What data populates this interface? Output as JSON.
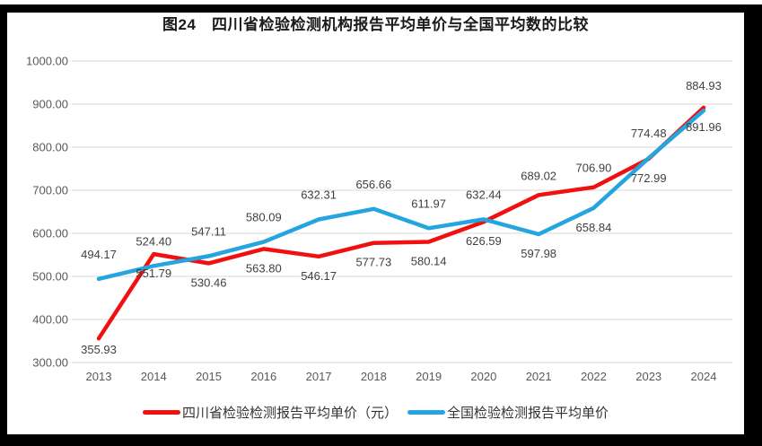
{
  "frame": {
    "color": "#000000"
  },
  "chart_data": {
    "type": "line",
    "title": "图24　四川省检验检测机构报告平均单价与全国平均数的比较",
    "categories": [
      "2013",
      "2014",
      "2015",
      "2016",
      "2017",
      "2018",
      "2019",
      "2020",
      "2021",
      "2022",
      "2023",
      "2024"
    ],
    "series": [
      {
        "key": "sichuan",
        "name": "四川省检验检测报告平均单价（元）",
        "color": "#F01010",
        "values": [
          355.93,
          551.79,
          530.46,
          563.8,
          546.17,
          577.73,
          580.14,
          626.59,
          689.02,
          706.9,
          772.99,
          891.96
        ],
        "label_positions": [
          "below",
          "below",
          "below",
          "below",
          "below",
          "below",
          "below",
          "below",
          "above",
          "above",
          "below",
          "below"
        ],
        "label_dy": [
          -9,
          0,
          0,
          0,
          0,
          0,
          0,
          0,
          6,
          6,
          0,
          0
        ]
      },
      {
        "key": "national",
        "name": "全国检验检测报告平均单价",
        "color": "#25A5DF",
        "values": [
          494.17,
          524.4,
          547.11,
          580.09,
          632.31,
          656.66,
          611.97,
          632.44,
          597.98,
          658.84,
          774.48,
          884.93
        ],
        "label_positions": [
          "above",
          "above",
          "above",
          "above",
          "above",
          "above",
          "above",
          "above",
          "below",
          "below",
          "above",
          "above"
        ],
        "label_dy": [
          0,
          0,
          0,
          0,
          0,
          0,
          0,
          0,
          0,
          0,
          0,
          0
        ]
      }
    ],
    "ylim": [
      300,
      1000
    ],
    "ytick_step": 100,
    "value_decimals": 2,
    "grid": "horizontal",
    "legend_position": "bottom",
    "styles": {
      "grid_color": "#D9D9D9",
      "axis_text_color": "#595959",
      "data_label_color": "#3F3F3F",
      "title_color": "#1A1A1A",
      "legend_text_color": "#333333",
      "background": "#FFFFFF",
      "line_width": 4.5
    }
  }
}
